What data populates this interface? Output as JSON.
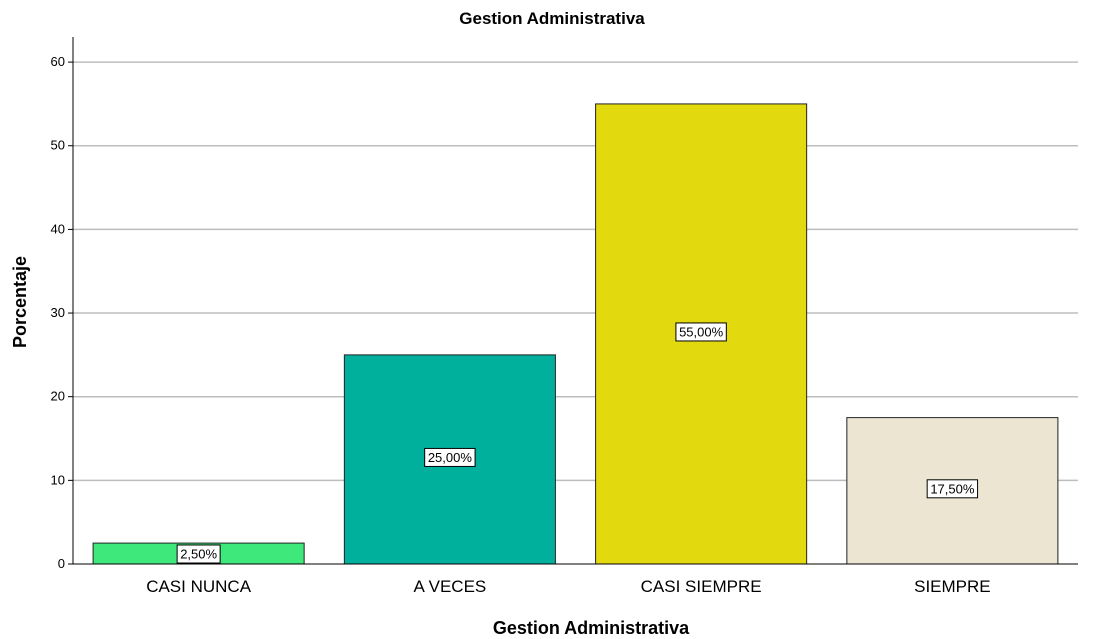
{
  "chart_data": {
    "type": "bar",
    "title": "Gestion Administrativa",
    "xlabel": "Gestion Administrativa",
    "ylabel": "Porcentaje",
    "categories": [
      "CASI NUNCA",
      "A VECES",
      "CASI SIEMPRE",
      "SIEMPRE"
    ],
    "values": [
      2.5,
      25.0,
      55.0,
      17.5
    ],
    "data_labels": [
      "2,50%",
      "25,00%",
      "55,00%",
      "17,50%"
    ],
    "colors": [
      "#3ee87a",
      "#00b09c",
      "#e2d90f",
      "#ece5d2"
    ],
    "ylim": [
      0,
      63
    ],
    "yticks": [
      0,
      10,
      20,
      30,
      40,
      50,
      60
    ],
    "grid": true,
    "legend": "none"
  }
}
